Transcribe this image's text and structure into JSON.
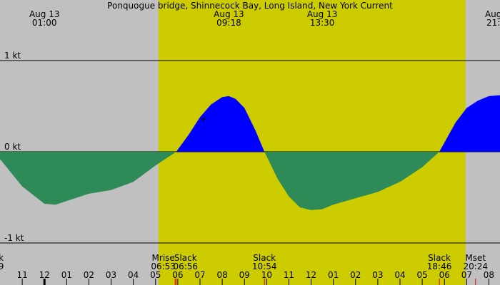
{
  "chart_data": {
    "type": "area",
    "title": "Ponquogue bridge, Shinnecock Bay, Long Island, New York Current",
    "xlabel": "",
    "ylabel": "",
    "unit": "kt",
    "x_unit": "hour of day (Aug 12 23:00 to Aug 13 21:30)",
    "xlim": [
      -1.0,
      21.5
    ],
    "ylim": [
      -1.0,
      1.0
    ],
    "y_ticks": [
      {
        "value": 1,
        "label": "1 kt"
      },
      {
        "value": 0,
        "label": "0 kt"
      },
      {
        "value": -1,
        "label": "-1 kt"
      }
    ],
    "daylight": {
      "start": 6.13,
      "end": 19.95
    },
    "top_events": [
      {
        "date": "Aug 13",
        "time": "01:00",
        "hour": 1.0
      },
      {
        "date": "Aug 13",
        "time": "09:18",
        "hour": 9.3
      },
      {
        "date": "Aug 13",
        "time": "13:30",
        "hour": 13.5
      },
      {
        "date": "Aug",
        "time": "21:",
        "hour": 21.2
      }
    ],
    "bottom_events": [
      {
        "label": "k",
        "time": "9",
        "hour": -0.95
      },
      {
        "label": "Mrise",
        "time": "06:53",
        "hour": 6.35
      },
      {
        "label": "Slack",
        "time": "06:56",
        "hour": 7.35
      },
      {
        "label": "Slack",
        "time": "10:54",
        "hour": 10.9
      },
      {
        "label": "Slack",
        "time": "18:46",
        "hour": 18.77
      },
      {
        "label": "Mset",
        "time": "20:24",
        "hour": 20.4
      }
    ],
    "hour_tick_labels": [
      "11",
      "12",
      "01",
      "02",
      "03",
      "04",
      "05",
      "06",
      "07",
      "08",
      "09",
      "10",
      "11",
      "12",
      "01",
      "02",
      "03",
      "04",
      "05",
      "06",
      "07",
      "08",
      "09"
    ],
    "event_markers": [
      6.88,
      6.93,
      10.9,
      18.77,
      20.4
    ],
    "series": [
      {
        "colors": {
          "ebb": "#2e8b57",
          "flood": "#0000ff"
        },
        "x": [
          -1.0,
          0.0,
          1.0,
          1.5,
          2.0,
          3.0,
          4.0,
          5.0,
          6.0,
          6.93,
          7.5,
          8.0,
          8.5,
          9.0,
          9.3,
          9.6,
          10.0,
          10.5,
          10.9,
          11.5,
          12.0,
          12.5,
          13.0,
          13.5,
          14.0,
          15.0,
          16.0,
          17.0,
          18.0,
          18.77,
          19.5,
          20.0,
          20.5,
          21.0,
          21.5
        ],
        "y": [
          -0.08,
          -0.38,
          -0.57,
          -0.58,
          -0.54,
          -0.46,
          -0.42,
          -0.33,
          -0.15,
          0.0,
          0.19,
          0.38,
          0.52,
          0.6,
          0.61,
          0.58,
          0.48,
          0.23,
          0.0,
          -0.3,
          -0.49,
          -0.61,
          -0.64,
          -0.63,
          -0.58,
          -0.51,
          -0.44,
          -0.33,
          -0.17,
          0.0,
          0.32,
          0.48,
          0.56,
          0.61,
          0.62
        ]
      }
    ]
  }
}
